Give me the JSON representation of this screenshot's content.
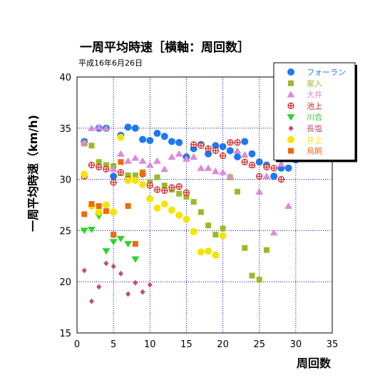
{
  "chart_data": {
    "type": "scatter",
    "title": "一周平均時速［横軸：周回数］",
    "subtitle": "平成16年6月26日",
    "xlabel": "周回数",
    "ylabel": "一周平均時速（km/h)",
    "xlim": [
      0,
      35
    ],
    "ylim": [
      15,
      40
    ],
    "xticks": [
      0,
      5,
      10,
      15,
      20,
      25,
      30,
      35
    ],
    "yticks": [
      15,
      20,
      25,
      30,
      35,
      40
    ],
    "grid": true,
    "legend": "top-right",
    "series": [
      {
        "name": "フォーラン",
        "color": "#1e78f0",
        "marker": "circle",
        "x": [
          1,
          3,
          4,
          5,
          6,
          7,
          8,
          9,
          10,
          11,
          12,
          13,
          14,
          15,
          16,
          17,
          18,
          19,
          20,
          21,
          22,
          23,
          24,
          25,
          26,
          27,
          28,
          29,
          30
        ],
        "y": [
          33.7,
          35.0,
          35.0,
          30.3,
          34.3,
          35.1,
          35.0,
          33.9,
          33.8,
          34.5,
          34.2,
          33.7,
          33.6,
          32.2,
          33.0,
          33.4,
          32.5,
          33.3,
          33.2,
          32.8,
          32.2,
          33.7,
          32.5,
          31.7,
          31.4,
          30.3,
          31.1,
          31.1,
          31.9
        ]
      },
      {
        "name": "家入",
        "color": "#9aba28",
        "marker": "square",
        "x": [
          1,
          2,
          3,
          4,
          5,
          6,
          7,
          8,
          9,
          10,
          11,
          12,
          13,
          14,
          15,
          16,
          17,
          18,
          19,
          20,
          21,
          22,
          23,
          24,
          25,
          26
        ],
        "y": [
          33.5,
          33.3,
          31.7,
          31.4,
          31.3,
          30.6,
          30.4,
          30.4,
          30.7,
          29.7,
          30.2,
          29.4,
          29.0,
          28.6,
          28.3,
          27.8,
          26.8,
          25.5,
          24.6,
          25.2,
          30.2,
          28.8,
          23.3,
          20.6,
          20.2,
          23.1
        ]
      },
      {
        "name": "大井",
        "color": "#dd8ad8",
        "marker": "triangle",
        "x": [
          1,
          2,
          3,
          4,
          5,
          6,
          7,
          8,
          9,
          10,
          11,
          12,
          13,
          14,
          15,
          16,
          17,
          18,
          19,
          20,
          21,
          22,
          23,
          24,
          25,
          26,
          27,
          28,
          29
        ],
        "y": [
          33.6,
          35.0,
          35.1,
          35.0,
          31.0,
          32.5,
          31.8,
          32.1,
          31.8,
          31.4,
          31.8,
          31.0,
          32.2,
          32.5,
          32.0,
          32.2,
          31.1,
          31.1,
          30.8,
          30.7,
          30.3,
          32.8,
          32.4,
          31.4,
          28.8,
          30.3,
          24.8,
          31.5,
          27.4
        ]
      },
      {
        "name": "池上",
        "color": "#d02020",
        "marker": "cross",
        "x": [
          1,
          2,
          3,
          4,
          5,
          6,
          7,
          8,
          9,
          10,
          11,
          12,
          13,
          14,
          15,
          16,
          17,
          18,
          19,
          20,
          21,
          22,
          23,
          24,
          25,
          26,
          27,
          28
        ],
        "y": [
          30.3,
          31.4,
          31.2,
          31.0,
          29.7,
          30.7,
          30.0,
          29.9,
          30.5,
          29.4,
          29.0,
          28.9,
          29.2,
          29.3,
          28.7,
          33.4,
          33.3,
          33.0,
          32.8,
          32.3,
          33.6,
          33.6,
          31.7,
          31.4,
          30.3,
          31.2,
          31.1,
          30.0
        ]
      },
      {
        "name": "川合",
        "color": "#2ad52a",
        "marker": "triangle-down",
        "x": [
          1,
          2,
          3,
          4,
          5,
          6,
          7,
          8
        ],
        "y": [
          25.0,
          25.1,
          26.4,
          23.0,
          23.9,
          24.2,
          23.7,
          22.2
        ]
      },
      {
        "name": "長塩",
        "color": "#c84a78",
        "marker": "diamond",
        "x": [
          1,
          2,
          3,
          4,
          5,
          6,
          7,
          8,
          9,
          10
        ],
        "y": [
          21.1,
          18.1,
          19.5,
          21.8,
          21.5,
          20.8,
          18.8,
          19.9,
          19.0,
          19.7
        ]
      },
      {
        "name": "井上",
        "color": "#f4e400",
        "marker": "circle",
        "x": [
          1,
          2,
          3,
          4,
          5,
          6,
          7,
          8,
          9,
          10,
          11,
          12,
          13,
          14,
          15,
          16,
          17,
          18,
          19,
          20
        ],
        "y": [
          30.5,
          27.4,
          26.8,
          27.5,
          26.8,
          34.1,
          29.9,
          29.9,
          29.5,
          28.1,
          27.2,
          27.6,
          27.0,
          26.5,
          26.1,
          24.9,
          22.9,
          23.0,
          22.6,
          24.5
        ]
      },
      {
        "name": "烏飼",
        "color": "#ee6a10",
        "marker": "square",
        "x": [
          1,
          2,
          3,
          4,
          5,
          6,
          7,
          8,
          9
        ],
        "y": [
          26.6,
          27.6,
          27.4,
          26.9,
          24.6,
          31.7,
          27.4,
          23.7,
          30.6
        ]
      }
    ]
  }
}
